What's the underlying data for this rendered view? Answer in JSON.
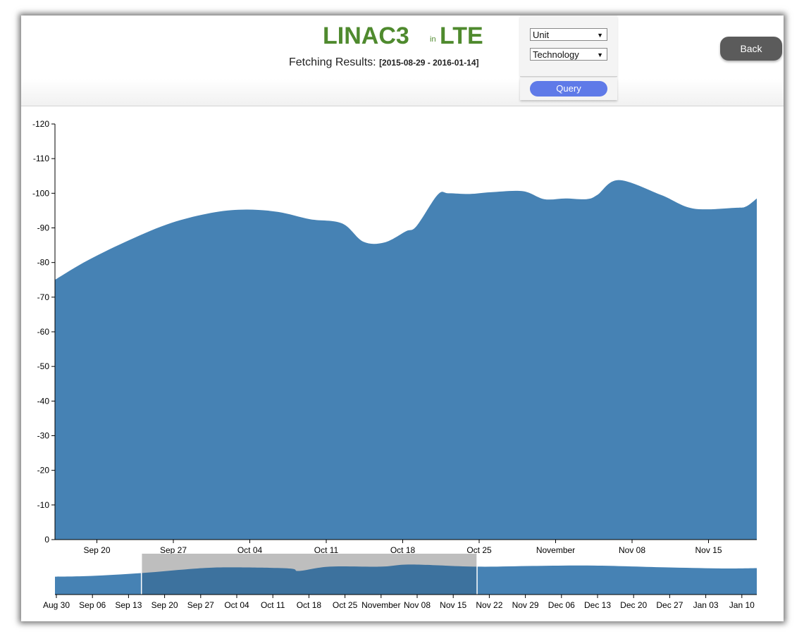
{
  "header": {
    "unit": "LINAC3",
    "connector": "in",
    "technology": "LTE",
    "fetching_label": "Fetching Results:",
    "range": "[2015-08-29 - 2016-01-14]"
  },
  "controls": {
    "unit_select": "Unit",
    "technology_select": "Technology",
    "query_label": "Query",
    "back_label": "Back"
  },
  "colors": {
    "area": "#4682b4",
    "brush": "#d9d9d9",
    "title": "#4f8a2e"
  },
  "chart_data": [
    {
      "type": "area",
      "title": "",
      "xlabel": "",
      "ylabel": "",
      "ylim": [
        0,
        -120
      ],
      "ytick_labels": [
        "0",
        "-10",
        "-20",
        "-30",
        "-40",
        "-50",
        "-60",
        "-70",
        "-80",
        "-90",
        "-100",
        "-110",
        "-120"
      ],
      "xtick_labels": [
        "Sep 20",
        "Sep 27",
        "Oct 04",
        "Oct 11",
        "Oct 18",
        "Oct 25",
        "November",
        "Nov 08",
        "Nov 15"
      ],
      "x": [
        "2015-09-15",
        "2015-09-18",
        "2015-09-22",
        "2015-09-26",
        "2015-09-30",
        "2015-10-03",
        "2015-10-06",
        "2015-10-09",
        "2015-10-12",
        "2015-10-14",
        "2015-10-16",
        "2015-10-18",
        "2015-10-19",
        "2015-10-21",
        "2015-10-22",
        "2015-10-24",
        "2015-10-26",
        "2015-10-29",
        "2015-10-31",
        "2015-11-02",
        "2015-11-04",
        "2015-11-05",
        "2015-11-07",
        "2015-11-11",
        "2015-11-14",
        "2015-11-18",
        "2015-11-19",
        "2015-11-20"
      ],
      "series": [
        {
          "values": [
            -75,
            -80.5,
            -86.5,
            -91.5,
            -94.5,
            -95.3,
            -94.6,
            -92.5,
            -91.3,
            -86,
            -85.8,
            -89,
            -90.5,
            -99.6,
            -100,
            -99.8,
            -100.3,
            -100.6,
            -98.3,
            -98.5,
            -98.3,
            -99.5,
            -103.8,
            -99.5,
            -95.6,
            -95.8,
            -96.2,
            -98.5
          ]
        }
      ]
    },
    {
      "type": "area",
      "title": "",
      "xlabel": "",
      "ylabel": "",
      "xtick_labels": [
        "Aug 30",
        "Sep 06",
        "Sep 13",
        "Sep 20",
        "Sep 27",
        "Oct 04",
        "Oct 11",
        "Oct 18",
        "Oct 25",
        "November",
        "Nov 08",
        "Nov 15",
        "Nov 22",
        "Nov 29",
        "Dec 06",
        "Dec 13",
        "Dec 20",
        "Dec 27",
        "Jan 03",
        "Jan 10"
      ],
      "brush_range": [
        "2015-09-15",
        "2015-11-20"
      ],
      "x": [
        "2015-08-29",
        "2015-09-05",
        "2015-09-15",
        "2015-09-26",
        "2015-10-03",
        "2015-10-14",
        "2015-10-16",
        "2015-10-22",
        "2015-11-01",
        "2015-11-07",
        "2015-11-20",
        "2015-12-01",
        "2015-12-13",
        "2015-12-27",
        "2016-01-07",
        "2016-01-14"
      ],
      "series": [
        {
          "values": [
            -50,
            -52,
            -60,
            -73,
            -76,
            -73,
            -66,
            -78,
            -78,
            -84,
            -78,
            -80,
            -81,
            -76,
            -73,
            -74
          ]
        }
      ]
    }
  ]
}
